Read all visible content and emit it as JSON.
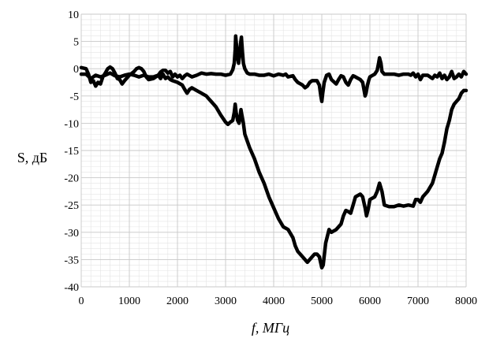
{
  "chart_data": {
    "type": "line",
    "xlabel": "f, МГц",
    "ylabel": "S, дБ",
    "xlim": [
      0,
      8000
    ],
    "ylim": [
      -40,
      10
    ],
    "xticks": [
      0,
      1000,
      2000,
      3000,
      4000,
      5000,
      6000,
      7000,
      8000
    ],
    "yticks": [
      10,
      5,
      0,
      -5,
      -10,
      -15,
      -20,
      -25,
      -30,
      -35,
      -40
    ],
    "major_grid": true,
    "minor_grid": true,
    "x_minor_step": 200,
    "y_minor_step": 1,
    "line_color": "#000000",
    "series": [
      {
        "values": [
          [
            0,
            0.2
          ],
          [
            100,
            0
          ],
          [
            150,
            -1
          ],
          [
            200,
            -2.5
          ],
          [
            250,
            -2.2
          ],
          [
            300,
            -3.2
          ],
          [
            350,
            -2.5
          ],
          [
            400,
            -2.8
          ],
          [
            450,
            -1.5
          ],
          [
            500,
            -0.8
          ],
          [
            550,
            0
          ],
          [
            600,
            0.3
          ],
          [
            650,
            0
          ],
          [
            700,
            -0.8
          ],
          [
            750,
            -1.8
          ],
          [
            800,
            -2
          ],
          [
            850,
            -2.8
          ],
          [
            900,
            -2.2
          ],
          [
            1000,
            -1.2
          ],
          [
            1100,
            -0.5
          ],
          [
            1150,
            0
          ],
          [
            1200,
            0.2
          ],
          [
            1250,
            0
          ],
          [
            1300,
            -0.5
          ],
          [
            1350,
            -1.5
          ],
          [
            1400,
            -2
          ],
          [
            1500,
            -1.8
          ],
          [
            1600,
            -1.2
          ],
          [
            1650,
            -0.6
          ],
          [
            1700,
            -0.3
          ],
          [
            1750,
            -0.3
          ],
          [
            1800,
            -0.8
          ],
          [
            1850,
            -0.5
          ],
          [
            1900,
            -1.5
          ],
          [
            1950,
            -1
          ],
          [
            2000,
            -1.5
          ],
          [
            2050,
            -1.2
          ],
          [
            2100,
            -1.8
          ],
          [
            2150,
            -1.3
          ],
          [
            2200,
            -1
          ],
          [
            2300,
            -1.5
          ],
          [
            2400,
            -1.2
          ],
          [
            2500,
            -0.8
          ],
          [
            2600,
            -1
          ],
          [
            2700,
            -0.9
          ],
          [
            2800,
            -1
          ],
          [
            2900,
            -1
          ],
          [
            3000,
            -1.2
          ],
          [
            3100,
            -1
          ],
          [
            3150,
            -0.2
          ],
          [
            3180,
            1
          ],
          [
            3200,
            3.5
          ],
          [
            3210,
            6
          ],
          [
            3230,
            4
          ],
          [
            3250,
            2
          ],
          [
            3270,
            1
          ],
          [
            3290,
            2.5
          ],
          [
            3310,
            4.5
          ],
          [
            3330,
            5.8
          ],
          [
            3350,
            3
          ],
          [
            3370,
            1
          ],
          [
            3400,
            0
          ],
          [
            3450,
            -0.8
          ],
          [
            3500,
            -1
          ],
          [
            3600,
            -1
          ],
          [
            3700,
            -1.2
          ],
          [
            3800,
            -1.2
          ],
          [
            3900,
            -1
          ],
          [
            4000,
            -1.3
          ],
          [
            4100,
            -1
          ],
          [
            4200,
            -1.2
          ],
          [
            4250,
            -1
          ],
          [
            4300,
            -1.5
          ],
          [
            4400,
            -1.3
          ],
          [
            4450,
            -2
          ],
          [
            4500,
            -2.5
          ],
          [
            4600,
            -3
          ],
          [
            4650,
            -3.5
          ],
          [
            4700,
            -3.2
          ],
          [
            4750,
            -2.5
          ],
          [
            4800,
            -2.2
          ],
          [
            4900,
            -2.2
          ],
          [
            4950,
            -3
          ],
          [
            4980,
            -5
          ],
          [
            5000,
            -6
          ],
          [
            5020,
            -4.5
          ],
          [
            5050,
            -2.5
          ],
          [
            5100,
            -1.2
          ],
          [
            5150,
            -1
          ],
          [
            5200,
            -2
          ],
          [
            5300,
            -2.8
          ],
          [
            5350,
            -2
          ],
          [
            5400,
            -1.3
          ],
          [
            5450,
            -1.5
          ],
          [
            5500,
            -2.5
          ],
          [
            5550,
            -3
          ],
          [
            5600,
            -2
          ],
          [
            5650,
            -1.3
          ],
          [
            5700,
            -1.5
          ],
          [
            5800,
            -2
          ],
          [
            5850,
            -2.5
          ],
          [
            5880,
            -4
          ],
          [
            5900,
            -5
          ],
          [
            5920,
            -4.5
          ],
          [
            5950,
            -3
          ],
          [
            5980,
            -2
          ],
          [
            6000,
            -1.5
          ],
          [
            6100,
            -1
          ],
          [
            6150,
            -0.3
          ],
          [
            6180,
            1
          ],
          [
            6200,
            2
          ],
          [
            6230,
            1
          ],
          [
            6250,
            -0.5
          ],
          [
            6300,
            -1
          ],
          [
            6400,
            -1
          ],
          [
            6500,
            -1
          ],
          [
            6600,
            -1.2
          ],
          [
            6700,
            -1
          ],
          [
            6800,
            -1
          ],
          [
            6850,
            -1.2
          ],
          [
            6900,
            -0.8
          ],
          [
            6950,
            -1.5
          ],
          [
            7000,
            -1
          ],
          [
            7050,
            -2
          ],
          [
            7100,
            -1.2
          ],
          [
            7200,
            -1.2
          ],
          [
            7300,
            -1.8
          ],
          [
            7350,
            -1.2
          ],
          [
            7400,
            -1.5
          ],
          [
            7450,
            -0.8
          ],
          [
            7500,
            -1.8
          ],
          [
            7550,
            -1.2
          ],
          [
            7600,
            -2
          ],
          [
            7650,
            -1.5
          ],
          [
            7700,
            -0.5
          ],
          [
            7750,
            -1.8
          ],
          [
            7800,
            -1.5
          ],
          [
            7850,
            -1
          ],
          [
            7900,
            -1.5
          ],
          [
            7950,
            -0.5
          ],
          [
            8000,
            -1
          ]
        ]
      },
      {
        "values": [
          [
            0,
            -1
          ],
          [
            100,
            -1
          ],
          [
            200,
            -1.8
          ],
          [
            300,
            -1.2
          ],
          [
            400,
            -1.5
          ],
          [
            500,
            -1.2
          ],
          [
            600,
            -0.8
          ],
          [
            700,
            -1.3
          ],
          [
            800,
            -1.5
          ],
          [
            900,
            -1.2
          ],
          [
            1000,
            -1
          ],
          [
            1100,
            -1.2
          ],
          [
            1200,
            -1.5
          ],
          [
            1300,
            -1.2
          ],
          [
            1400,
            -1.5
          ],
          [
            1500,
            -1.5
          ],
          [
            1600,
            -1.2
          ],
          [
            1650,
            -1.8
          ],
          [
            1700,
            -1
          ],
          [
            1750,
            -1.8
          ],
          [
            1800,
            -1.5
          ],
          [
            1850,
            -2
          ],
          [
            1900,
            -2.2
          ],
          [
            2000,
            -2.5
          ],
          [
            2100,
            -3
          ],
          [
            2150,
            -3.8
          ],
          [
            2200,
            -4.5
          ],
          [
            2250,
            -3.8
          ],
          [
            2300,
            -3.5
          ],
          [
            2400,
            -4
          ],
          [
            2500,
            -4.5
          ],
          [
            2600,
            -5
          ],
          [
            2650,
            -5.5
          ],
          [
            2700,
            -6
          ],
          [
            2800,
            -7
          ],
          [
            2900,
            -8.5
          ],
          [
            3000,
            -9.8
          ],
          [
            3050,
            -10.2
          ],
          [
            3100,
            -9.8
          ],
          [
            3150,
            -9.5
          ],
          [
            3180,
            -8
          ],
          [
            3200,
            -6.5
          ],
          [
            3220,
            -8
          ],
          [
            3250,
            -9.5
          ],
          [
            3280,
            -10
          ],
          [
            3300,
            -9
          ],
          [
            3320,
            -7.5
          ],
          [
            3340,
            -8.5
          ],
          [
            3370,
            -10
          ],
          [
            3400,
            -12
          ],
          [
            3500,
            -14.5
          ],
          [
            3600,
            -16.5
          ],
          [
            3700,
            -19
          ],
          [
            3800,
            -21
          ],
          [
            3900,
            -23.5
          ],
          [
            4000,
            -25.5
          ],
          [
            4100,
            -27.5
          ],
          [
            4200,
            -29
          ],
          [
            4300,
            -29.5
          ],
          [
            4400,
            -31
          ],
          [
            4450,
            -32.5
          ],
          [
            4500,
            -33.5
          ],
          [
            4600,
            -34.5
          ],
          [
            4700,
            -35.5
          ],
          [
            4800,
            -34.5
          ],
          [
            4850,
            -34
          ],
          [
            4900,
            -34
          ],
          [
            4950,
            -34.5
          ],
          [
            5000,
            -36.5
          ],
          [
            5030,
            -36
          ],
          [
            5080,
            -32
          ],
          [
            5150,
            -29.5
          ],
          [
            5200,
            -30
          ],
          [
            5300,
            -29.5
          ],
          [
            5400,
            -28.5
          ],
          [
            5450,
            -27
          ],
          [
            5500,
            -26
          ],
          [
            5550,
            -26.2
          ],
          [
            5600,
            -26.5
          ],
          [
            5650,
            -25
          ],
          [
            5700,
            -23.5
          ],
          [
            5800,
            -23
          ],
          [
            5850,
            -23.5
          ],
          [
            5900,
            -25.5
          ],
          [
            5930,
            -27
          ],
          [
            5970,
            -25.5
          ],
          [
            6000,
            -24
          ],
          [
            6100,
            -23.5
          ],
          [
            6150,
            -22.5
          ],
          [
            6200,
            -21
          ],
          [
            6250,
            -22.5
          ],
          [
            6300,
            -25
          ],
          [
            6400,
            -25.3
          ],
          [
            6500,
            -25.3
          ],
          [
            6600,
            -25
          ],
          [
            6700,
            -25.2
          ],
          [
            6800,
            -25
          ],
          [
            6900,
            -25.2
          ],
          [
            6950,
            -24
          ],
          [
            7000,
            -24
          ],
          [
            7050,
            -24.5
          ],
          [
            7100,
            -23.5
          ],
          [
            7200,
            -22.5
          ],
          [
            7300,
            -21
          ],
          [
            7400,
            -18
          ],
          [
            7450,
            -16.5
          ],
          [
            7500,
            -15.5
          ],
          [
            7550,
            -13.5
          ],
          [
            7600,
            -11
          ],
          [
            7650,
            -9.5
          ],
          [
            7700,
            -7.5
          ],
          [
            7750,
            -6.5
          ],
          [
            7800,
            -6
          ],
          [
            7850,
            -5.5
          ],
          [
            7900,
            -4.5
          ],
          [
            7950,
            -4
          ],
          [
            8000,
            -4
          ]
        ]
      }
    ]
  }
}
